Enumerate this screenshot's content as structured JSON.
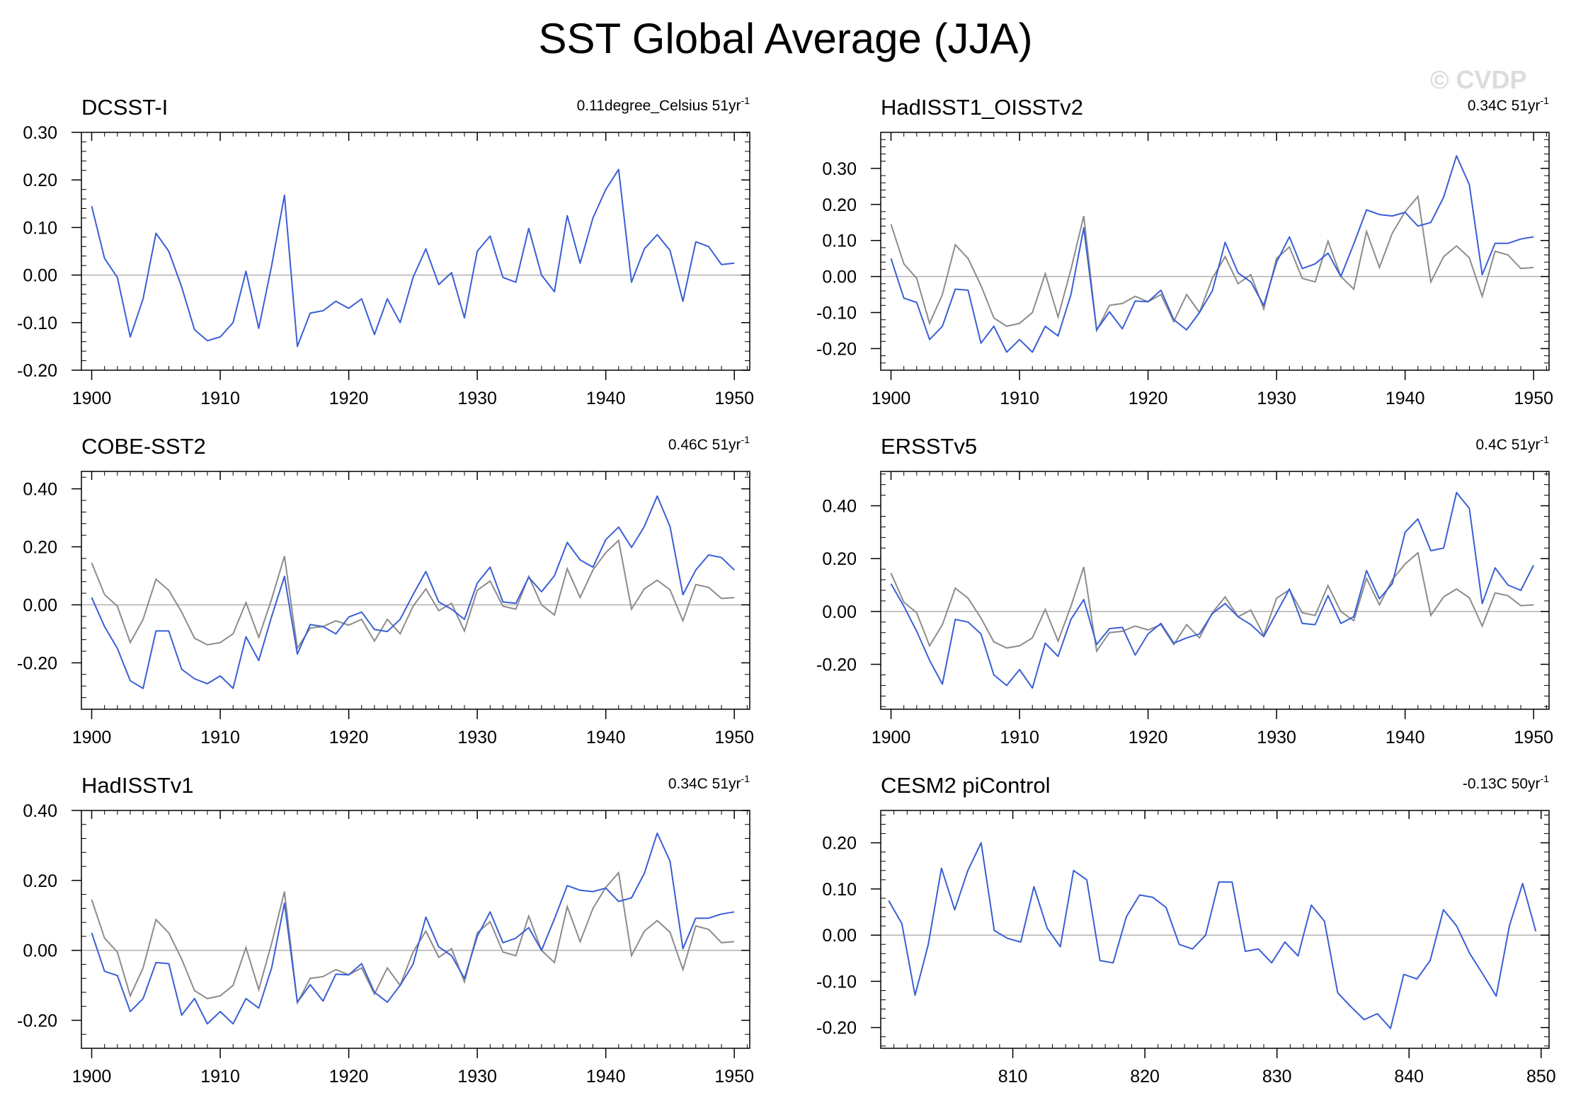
{
  "main_title": "SST Global Average (JJA)",
  "watermark": "© CVDP",
  "colors": {
    "series": "#3a5fd6",
    "reference": "#8c8c8c",
    "axis": "#000000",
    "zero_line": "#b0b0b0"
  },
  "reference_series": [
    0.145,
    0.035,
    -0.005,
    -0.13,
    -0.05,
    0.088,
    0.05,
    -0.025,
    -0.115,
    -0.138,
    -0.13,
    -0.1,
    0.008,
    -0.112,
    0.02,
    0.168,
    -0.15,
    -0.08,
    -0.075,
    -0.055,
    -0.07,
    -0.05,
    -0.125,
    -0.05,
    -0.1,
    -0.005,
    0.055,
    -0.02,
    0.005,
    -0.09,
    0.05,
    0.082,
    -0.005,
    -0.015,
    0.098,
    0.0,
    -0.035,
    0.125,
    0.025,
    0.12,
    0.18,
    0.222,
    -0.015,
    0.055,
    0.085,
    0.052,
    -0.055,
    0.07,
    0.06,
    0.022,
    0.025
  ],
  "chart_data": [
    {
      "type": "line",
      "title": "DCSST-I",
      "trend_text": "0.11degree_Celsius 51yr",
      "trend_sup": "-1",
      "xlim": [
        1899.2,
        1951.2
      ],
      "ylim": [
        -0.2,
        0.3
      ],
      "xticks": [
        1900,
        1910,
        1920,
        1930,
        1940,
        1950
      ],
      "yticks": [
        -0.2,
        -0.1,
        0.0,
        0.1,
        0.2,
        0.3
      ],
      "yticklabels": [
        "-0.20",
        "-0.10",
        "0.00",
        "0.10",
        "0.20",
        "0.30"
      ],
      "x_start": 1900,
      "show_reference": false,
      "series": [
        {
          "name": "DCSST-I",
          "values": [
            0.145,
            0.035,
            -0.005,
            -0.13,
            -0.05,
            0.088,
            0.05,
            -0.025,
            -0.115,
            -0.138,
            -0.13,
            -0.1,
            0.008,
            -0.112,
            0.02,
            0.168,
            -0.15,
            -0.08,
            -0.075,
            -0.055,
            -0.07,
            -0.05,
            -0.125,
            -0.05,
            -0.1,
            -0.005,
            0.055,
            -0.02,
            0.005,
            -0.09,
            0.05,
            0.082,
            -0.005,
            -0.015,
            0.098,
            0.0,
            -0.035,
            0.125,
            0.025,
            0.12,
            0.18,
            0.222,
            -0.015,
            0.055,
            0.085,
            0.052,
            -0.055,
            0.07,
            0.06,
            0.022,
            0.025
          ]
        }
      ]
    },
    {
      "type": "line",
      "title": "HadISST1_OISSTv2",
      "trend_text": "0.34C 51yr",
      "trend_sup": "-1",
      "xlim": [
        1899.2,
        1951.2
      ],
      "ylim": [
        -0.26,
        0.4
      ],
      "xticks": [
        1900,
        1910,
        1920,
        1930,
        1940,
        1950
      ],
      "yticks": [
        -0.2,
        -0.1,
        0.0,
        0.1,
        0.2,
        0.3
      ],
      "yticklabels": [
        "-0.20",
        "-0.10",
        "0.00",
        "0.10",
        "0.20",
        "0.30"
      ],
      "x_start": 1900,
      "show_reference": true,
      "series": [
        {
          "name": "HadISST1_OISSTv2",
          "values": [
            0.05,
            -0.06,
            -0.072,
            -0.175,
            -0.138,
            -0.035,
            -0.038,
            -0.185,
            -0.138,
            -0.21,
            -0.175,
            -0.21,
            -0.138,
            -0.165,
            -0.05,
            0.135,
            -0.148,
            -0.098,
            -0.145,
            -0.068,
            -0.07,
            -0.038,
            -0.12,
            -0.148,
            -0.1,
            -0.04,
            0.095,
            0.01,
            -0.015,
            -0.08,
            0.04,
            0.11,
            0.022,
            0.035,
            0.065,
            0.0,
            0.09,
            0.185,
            0.172,
            0.168,
            0.178,
            0.14,
            0.15,
            0.22,
            0.335,
            0.255,
            0.005,
            0.092,
            0.092,
            0.104,
            0.11
          ]
        }
      ]
    },
    {
      "type": "line",
      "title": "COBE-SST2",
      "trend_text": "0.46C 51yr",
      "trend_sup": "-1",
      "xlim": [
        1899.2,
        1951.2
      ],
      "ylim": [
        -0.36,
        0.46
      ],
      "xticks": [
        1900,
        1910,
        1920,
        1930,
        1940,
        1950
      ],
      "yticks": [
        -0.2,
        0.0,
        0.2,
        0.4
      ],
      "yticklabels": [
        "-0.20",
        "0.00",
        "0.20",
        "0.40"
      ],
      "x_start": 1900,
      "show_reference": true,
      "series": [
        {
          "name": "COBE-SST2",
          "values": [
            0.025,
            -0.075,
            -0.15,
            -0.262,
            -0.288,
            -0.09,
            -0.09,
            -0.222,
            -0.255,
            -0.272,
            -0.245,
            -0.288,
            -0.11,
            -0.192,
            -0.04,
            0.098,
            -0.17,
            -0.068,
            -0.075,
            -0.1,
            -0.042,
            -0.025,
            -0.085,
            -0.092,
            -0.05,
            0.035,
            0.115,
            0.01,
            -0.015,
            -0.05,
            0.075,
            0.13,
            0.01,
            0.005,
            0.095,
            0.045,
            0.1,
            0.215,
            0.155,
            0.13,
            0.225,
            0.268,
            0.198,
            0.27,
            0.375,
            0.27,
            0.035,
            0.12,
            0.172,
            0.163,
            0.12
          ]
        }
      ]
    },
    {
      "type": "line",
      "title": "ERSSTv5",
      "trend_text": "0.4C 51yr",
      "trend_sup": "-1",
      "xlim": [
        1899.2,
        1951.2
      ],
      "ylim": [
        -0.37,
        0.53
      ],
      "xticks": [
        1900,
        1910,
        1920,
        1930,
        1940,
        1950
      ],
      "yticks": [
        -0.2,
        0.0,
        0.2,
        0.4
      ],
      "yticklabels": [
        "-0.20",
        "0.00",
        "0.20",
        "0.40"
      ],
      "x_start": 1900,
      "show_reference": true,
      "series": [
        {
          "name": "ERSSTv5",
          "values": [
            0.105,
            0.02,
            -0.075,
            -0.185,
            -0.275,
            -0.03,
            -0.04,
            -0.085,
            -0.24,
            -0.28,
            -0.22,
            -0.29,
            -0.12,
            -0.17,
            -0.03,
            0.045,
            -0.125,
            -0.065,
            -0.06,
            -0.165,
            -0.085,
            -0.045,
            -0.12,
            -0.1,
            -0.085,
            -0.008,
            0.03,
            -0.02,
            -0.05,
            -0.095,
            -0.005,
            0.085,
            -0.045,
            -0.05,
            0.06,
            -0.045,
            -0.02,
            0.155,
            0.048,
            0.105,
            0.3,
            0.35,
            0.23,
            0.24,
            0.45,
            0.39,
            0.03,
            0.165,
            0.1,
            0.08,
            0.175
          ]
        }
      ]
    },
    {
      "type": "line",
      "title": "HadISSTv1",
      "trend_text": "0.34C 51yr",
      "trend_sup": "-1",
      "xlim": [
        1899.2,
        1951.2
      ],
      "ylim": [
        -0.28,
        0.4
      ],
      "xticks": [
        1900,
        1910,
        1920,
        1930,
        1940,
        1950
      ],
      "yticks": [
        -0.2,
        0.0,
        0.2,
        0.4
      ],
      "yticklabels": [
        "-0.20",
        "0.00",
        "0.20",
        "0.40"
      ],
      "x_start": 1900,
      "show_reference": true,
      "series": [
        {
          "name": "HadISSTv1",
          "values": [
            0.05,
            -0.06,
            -0.072,
            -0.175,
            -0.138,
            -0.035,
            -0.038,
            -0.185,
            -0.138,
            -0.21,
            -0.175,
            -0.21,
            -0.138,
            -0.165,
            -0.05,
            0.135,
            -0.148,
            -0.098,
            -0.145,
            -0.068,
            -0.07,
            -0.038,
            -0.12,
            -0.148,
            -0.1,
            -0.04,
            0.095,
            0.01,
            -0.015,
            -0.08,
            0.04,
            0.11,
            0.022,
            0.035,
            0.065,
            0.0,
            0.09,
            0.185,
            0.172,
            0.168,
            0.178,
            0.14,
            0.15,
            0.22,
            0.335,
            0.255,
            0.005,
            0.092,
            0.092,
            0.104,
            0.11
          ]
        }
      ]
    },
    {
      "type": "line",
      "title": "CESM2 piControl",
      "trend_text": "-0.13C 50yr",
      "trend_sup": "-1",
      "xlim": [
        800.0,
        850.6
      ],
      "ylim": [
        -0.245,
        0.27
      ],
      "xticks": [
        810,
        820,
        830,
        840,
        850
      ],
      "yticks": [
        -0.2,
        -0.1,
        0.0,
        0.1,
        0.2
      ],
      "yticklabels": [
        "-0.20",
        "-0.10",
        "0.00",
        "0.10",
        "0.20"
      ],
      "x_start": 800.6,
      "show_reference": false,
      "series": [
        {
          "name": "CESM2 piControl",
          "values": [
            0.075,
            0.025,
            -0.13,
            -0.02,
            0.145,
            0.055,
            0.14,
            0.2,
            0.01,
            -0.007,
            -0.015,
            0.105,
            0.015,
            -0.025,
            0.14,
            0.12,
            -0.055,
            -0.06,
            0.04,
            0.087,
            0.082,
            0.06,
            -0.02,
            -0.03,
            0.0,
            0.115,
            0.115,
            -0.035,
            -0.03,
            -0.06,
            -0.015,
            -0.045,
            0.065,
            0.03,
            -0.125,
            -0.155,
            -0.183,
            -0.17,
            -0.202,
            -0.085,
            -0.095,
            -0.055,
            0.055,
            0.02,
            -0.04,
            -0.085,
            -0.132,
            0.02,
            0.112,
            0.008
          ]
        }
      ]
    }
  ]
}
